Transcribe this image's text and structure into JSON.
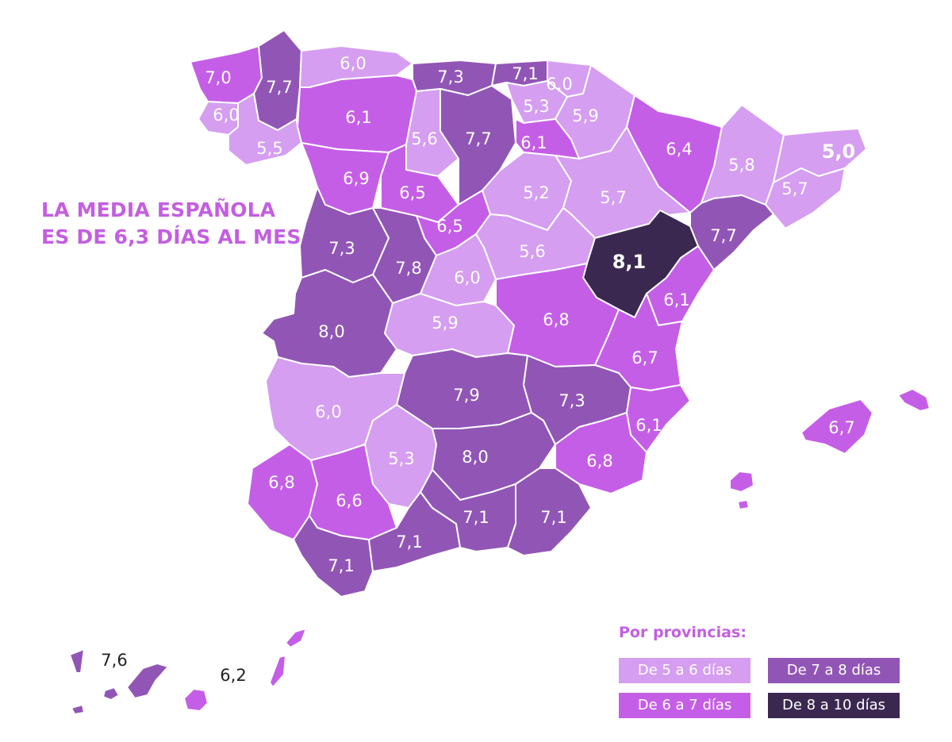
{
  "headline": {
    "line1": "LA MEDIA ESPAÑOLA",
    "line2": "ES DE 6,3 DÍAS AL MES"
  },
  "colors": {
    "range_5_6": "#d59ef0",
    "range_6_7": "#c55ee6",
    "range_7_8": "#9156b5",
    "range_8_10": "#3b2850",
    "headline": "#c35fe0"
  },
  "legend": {
    "title": "Por provincias:",
    "items": [
      {
        "label": "De 5 a 6 días",
        "range": "range_5_6"
      },
      {
        "label": "De 6 a 7 días",
        "range": "range_6_7"
      },
      {
        "label": "De 7 a 8 días",
        "range": "range_7_8"
      },
      {
        "label": "De 8 a 10 días",
        "range": "range_8_10"
      }
    ]
  },
  "provinces": [
    {
      "label": "7,0",
      "range": "range_6_7"
    },
    {
      "label": "7,7",
      "range": "range_7_8"
    },
    {
      "label": "6,0",
      "range": "range_5_6"
    },
    {
      "label": "7,3",
      "range": "range_7_8"
    },
    {
      "label": "7,1",
      "range": "range_7_8"
    },
    {
      "label": "6,0",
      "range": "range_5_6"
    },
    {
      "label": "6,0",
      "range": "range_5_6"
    },
    {
      "label": "6,1",
      "range": "range_6_7"
    },
    {
      "label": "5,3",
      "range": "range_5_6"
    },
    {
      "label": "5,9",
      "range": "range_5_6"
    },
    {
      "label": "5,5",
      "range": "range_5_6"
    },
    {
      "label": "5,6",
      "range": "range_5_6"
    },
    {
      "label": "7,7",
      "range": "range_7_8"
    },
    {
      "label": "6,1",
      "range": "range_6_7"
    },
    {
      "label": "6,4",
      "range": "range_6_7"
    },
    {
      "label": "5,8",
      "range": "range_5_6"
    },
    {
      "label": "5,0",
      "range": "range_5_6"
    },
    {
      "label": "6,9",
      "range": "range_6_7"
    },
    {
      "label": "6,5",
      "range": "range_6_7"
    },
    {
      "label": "5,2",
      "range": "range_5_6"
    },
    {
      "label": "5,7",
      "range": "range_5_6"
    },
    {
      "label": "5,7",
      "range": "range_5_6"
    },
    {
      "label": "6,5",
      "range": "range_6_7"
    },
    {
      "label": "7,3",
      "range": "range_7_8"
    },
    {
      "label": "7,8",
      "range": "range_7_8"
    },
    {
      "label": "5,6",
      "range": "range_5_6"
    },
    {
      "label": "8,1",
      "range": "range_8_10"
    },
    {
      "label": "7,7",
      "range": "range_7_8"
    },
    {
      "label": "6,0",
      "range": "range_5_6"
    },
    {
      "label": "6,1",
      "range": "range_6_7"
    },
    {
      "label": "8,0",
      "range": "range_7_8"
    },
    {
      "label": "5,9",
      "range": "range_5_6"
    },
    {
      "label": "6,8",
      "range": "range_6_7"
    },
    {
      "label": "6,7",
      "range": "range_6_7"
    },
    {
      "label": "7,9",
      "range": "range_7_8"
    },
    {
      "label": "7,3",
      "range": "range_7_8"
    },
    {
      "label": "6,0",
      "range": "range_5_6"
    },
    {
      "label": "6,1",
      "range": "range_6_7"
    },
    {
      "label": "6,7",
      "range": "range_6_7"
    },
    {
      "label": "5,3",
      "range": "range_5_6"
    },
    {
      "label": "8,0",
      "range": "range_7_8"
    },
    {
      "label": "6,8",
      "range": "range_6_7"
    },
    {
      "label": "6,8",
      "range": "range_6_7"
    },
    {
      "label": "6,6",
      "range": "range_6_7"
    },
    {
      "label": "7,1",
      "range": "range_7_8"
    },
    {
      "label": "7,1",
      "range": "range_7_8"
    },
    {
      "label": "7,1",
      "range": "range_7_8"
    },
    {
      "label": "7,1",
      "range": "range_7_8"
    },
    {
      "label": "7,6",
      "range": "range_7_8"
    },
    {
      "label": "6,2",
      "range": "range_6_7"
    }
  ]
}
